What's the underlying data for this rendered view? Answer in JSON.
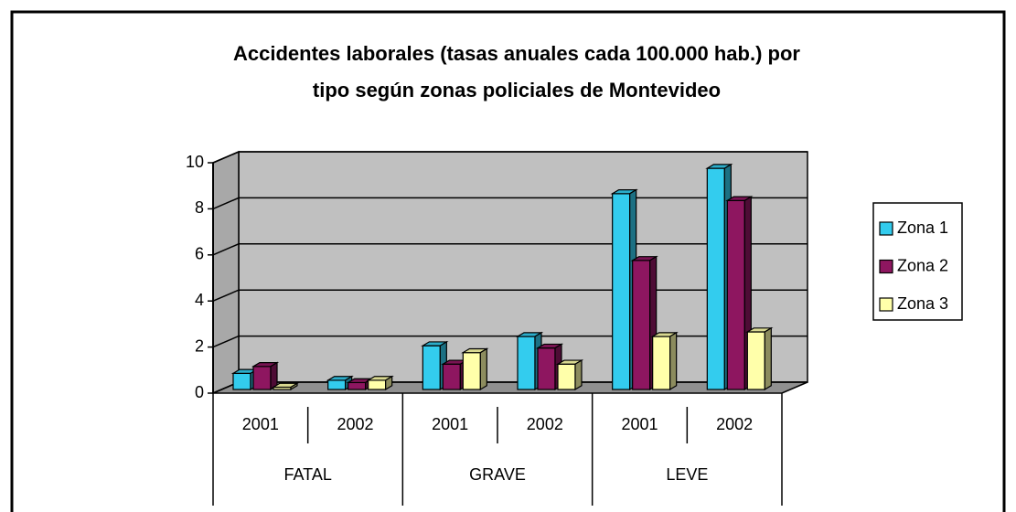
{
  "chart_data": {
    "type": "bar3d",
    "title": [
      "Accidentes laborales (tasas anuales cada 100.000 hab.) por",
      "tipo según zonas policiales de Montevideo"
    ],
    "categories": [
      "2001",
      "2002",
      "2001",
      "2002",
      "2001",
      "2002"
    ],
    "groups": [
      "FATAL",
      "GRAVE",
      "LEVE"
    ],
    "series": [
      {
        "name": "Zona 1",
        "color": "#33ccee",
        "values": [
          0.7,
          0.4,
          1.9,
          2.3,
          8.5,
          9.6
        ]
      },
      {
        "name": "Zona 2",
        "color": "#8e1660",
        "values": [
          1.0,
          0.3,
          1.1,
          1.8,
          5.6,
          8.2
        ]
      },
      {
        "name": "Zona 3",
        "color": "#ffffaa",
        "values": [
          0.1,
          0.4,
          1.6,
          1.1,
          2.3,
          2.5
        ]
      }
    ],
    "ylim": [
      0,
      10
    ],
    "yticks": [
      0,
      2,
      4,
      6,
      8,
      10
    ],
    "grid": true,
    "legend": "right"
  }
}
